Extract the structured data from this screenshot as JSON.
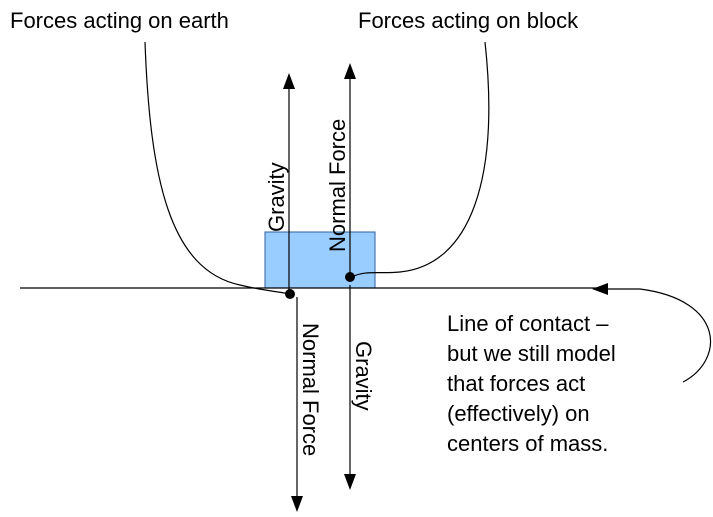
{
  "diagram": {
    "left_caption": "Forces acting on earth",
    "right_caption": "Forces acting on block",
    "block_forces": {
      "gravity_label": "Gravity",
      "normal_label": "Normal Force"
    },
    "earth_forces": {
      "normal_label": "Normal Force",
      "gravity_label": "Gravity"
    },
    "contact_note": {
      "lines": [
        "Line of contact –",
        "but we still model",
        "that forces act",
        "(effectively) on",
        "centers of mass."
      ]
    },
    "colors": {
      "block_fill": "#99ccff",
      "block_stroke": "#2f5f9f",
      "line": "#000000"
    }
  }
}
